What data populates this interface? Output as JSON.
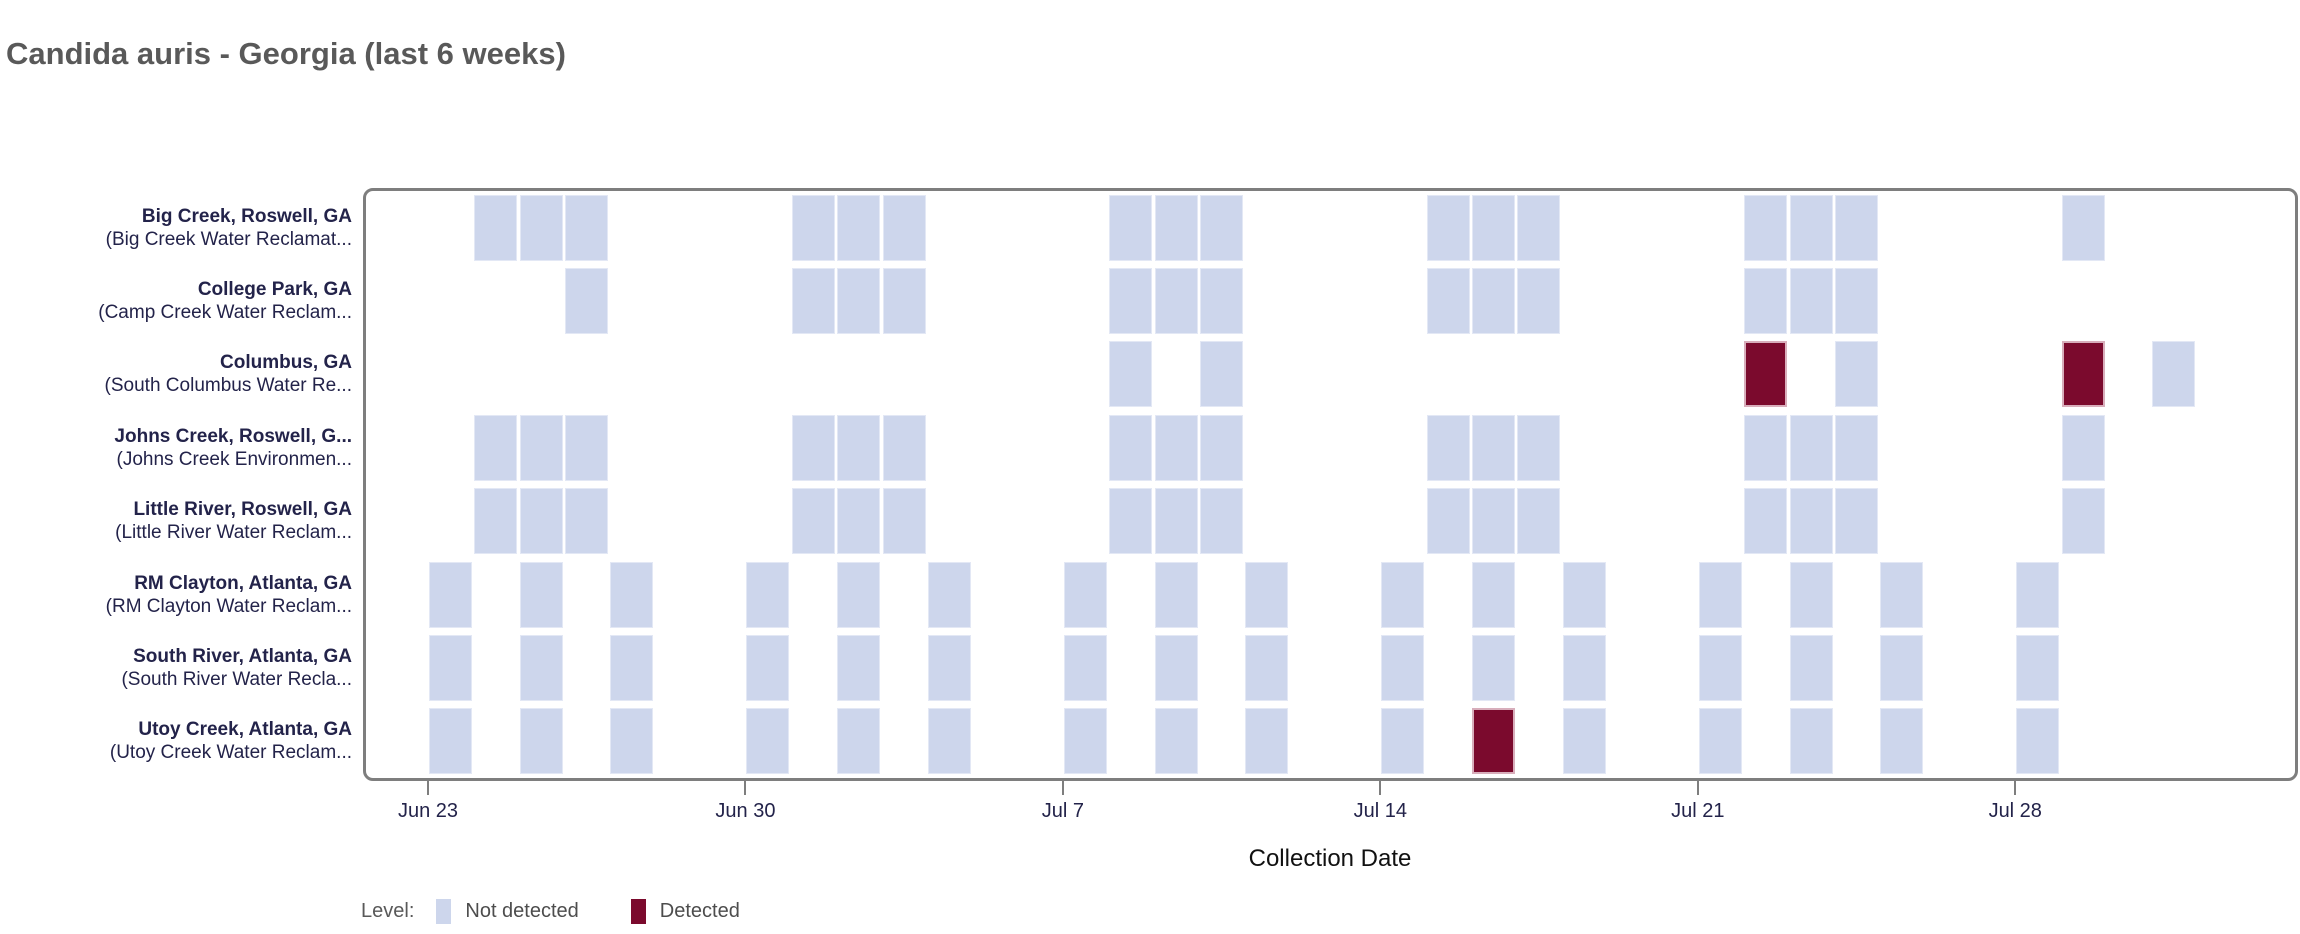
{
  "title": "Candida auris - Georgia (last 6 weeks)",
  "xlabel": "Collection Date",
  "legend": {
    "label": "Level:",
    "items": [
      {
        "label": "Not detected",
        "color": "#cdd6ec"
      },
      {
        "label": "Detected",
        "color": "#7b0a2d"
      }
    ]
  },
  "colors": {
    "not_detected": "#cdd6ec",
    "detected": "#7b0a2d",
    "detected_border": "#d8aebb",
    "plot_border": "#7e7e7e",
    "label_text": "#23234a",
    "title_text": "#595959",
    "legend_text": "#4d4d4d"
  },
  "chart_data": {
    "type": "heatmap",
    "x_axis_label": "Collection Date",
    "x_ticks": [
      {
        "label": "Jun 23",
        "day": 0
      },
      {
        "label": "Jun 30",
        "day": 7
      },
      {
        "label": "Jul 7",
        "day": 14
      },
      {
        "label": "Jul 14",
        "day": 21
      },
      {
        "label": "Jul 21",
        "day": 28
      },
      {
        "label": "Jul 28",
        "day": 35
      }
    ],
    "x_domain_days": [
      -1.43,
      41.23
    ],
    "legend_levels": [
      "Not detected",
      "Detected"
    ],
    "rows": [
      {
        "name": "Big Creek, Roswell, GA",
        "facility": "(Big Creek Water Reclamat...",
        "samples": [
          {
            "date": "Jun 24",
            "day": 1,
            "status": "not_detected"
          },
          {
            "date": "Jun 25",
            "day": 2,
            "status": "not_detected"
          },
          {
            "date": "Jun 26",
            "day": 3,
            "status": "not_detected"
          },
          {
            "date": "Jul 1",
            "day": 8,
            "status": "not_detected"
          },
          {
            "date": "Jul 2",
            "day": 9,
            "status": "not_detected"
          },
          {
            "date": "Jul 3",
            "day": 10,
            "status": "not_detected"
          },
          {
            "date": "Jul 8",
            "day": 15,
            "status": "not_detected"
          },
          {
            "date": "Jul 9",
            "day": 16,
            "status": "not_detected"
          },
          {
            "date": "Jul 10",
            "day": 17,
            "status": "not_detected"
          },
          {
            "date": "Jul 15",
            "day": 22,
            "status": "not_detected"
          },
          {
            "date": "Jul 16",
            "day": 23,
            "status": "not_detected"
          },
          {
            "date": "Jul 17",
            "day": 24,
            "status": "not_detected"
          },
          {
            "date": "Jul 22",
            "day": 29,
            "status": "not_detected"
          },
          {
            "date": "Jul 23",
            "day": 30,
            "status": "not_detected"
          },
          {
            "date": "Jul 24",
            "day": 31,
            "status": "not_detected"
          },
          {
            "date": "Jul 29",
            "day": 36,
            "status": "not_detected"
          }
        ]
      },
      {
        "name": "College Park, GA",
        "facility": "(Camp Creek Water Reclam...",
        "samples": [
          {
            "date": "Jun 26",
            "day": 3,
            "status": "not_detected"
          },
          {
            "date": "Jul 1",
            "day": 8,
            "status": "not_detected"
          },
          {
            "date": "Jul 2",
            "day": 9,
            "status": "not_detected"
          },
          {
            "date": "Jul 3",
            "day": 10,
            "status": "not_detected"
          },
          {
            "date": "Jul 8",
            "day": 15,
            "status": "not_detected"
          },
          {
            "date": "Jul 9",
            "day": 16,
            "status": "not_detected"
          },
          {
            "date": "Jul 10",
            "day": 17,
            "status": "not_detected"
          },
          {
            "date": "Jul 15",
            "day": 22,
            "status": "not_detected"
          },
          {
            "date": "Jul 16",
            "day": 23,
            "status": "not_detected"
          },
          {
            "date": "Jul 17",
            "day": 24,
            "status": "not_detected"
          },
          {
            "date": "Jul 22",
            "day": 29,
            "status": "not_detected"
          },
          {
            "date": "Jul 23",
            "day": 30,
            "status": "not_detected"
          },
          {
            "date": "Jul 24",
            "day": 31,
            "status": "not_detected"
          }
        ]
      },
      {
        "name": "Columbus, GA",
        "facility": "(South Columbus Water Re...",
        "samples": [
          {
            "date": "Jul 8",
            "day": 15,
            "status": "not_detected"
          },
          {
            "date": "Jul 10",
            "day": 17,
            "status": "not_detected"
          },
          {
            "date": "Jul 22",
            "day": 29,
            "status": "detected"
          },
          {
            "date": "Jul 24",
            "day": 31,
            "status": "not_detected"
          },
          {
            "date": "Jul 29",
            "day": 36,
            "status": "detected"
          },
          {
            "date": "Jul 31",
            "day": 38,
            "status": "not_detected"
          }
        ]
      },
      {
        "name": "Johns Creek, Roswell, G...",
        "facility": "(Johns Creek Environmen...",
        "samples": [
          {
            "date": "Jun 24",
            "day": 1,
            "status": "not_detected"
          },
          {
            "date": "Jun 25",
            "day": 2,
            "status": "not_detected"
          },
          {
            "date": "Jun 26",
            "day": 3,
            "status": "not_detected"
          },
          {
            "date": "Jul 1",
            "day": 8,
            "status": "not_detected"
          },
          {
            "date": "Jul 2",
            "day": 9,
            "status": "not_detected"
          },
          {
            "date": "Jul 3",
            "day": 10,
            "status": "not_detected"
          },
          {
            "date": "Jul 8",
            "day": 15,
            "status": "not_detected"
          },
          {
            "date": "Jul 9",
            "day": 16,
            "status": "not_detected"
          },
          {
            "date": "Jul 10",
            "day": 17,
            "status": "not_detected"
          },
          {
            "date": "Jul 15",
            "day": 22,
            "status": "not_detected"
          },
          {
            "date": "Jul 16",
            "day": 23,
            "status": "not_detected"
          },
          {
            "date": "Jul 17",
            "day": 24,
            "status": "not_detected"
          },
          {
            "date": "Jul 22",
            "day": 29,
            "status": "not_detected"
          },
          {
            "date": "Jul 23",
            "day": 30,
            "status": "not_detected"
          },
          {
            "date": "Jul 24",
            "day": 31,
            "status": "not_detected"
          },
          {
            "date": "Jul 29",
            "day": 36,
            "status": "not_detected"
          }
        ]
      },
      {
        "name": "Little River, Roswell, GA",
        "facility": "(Little River Water Reclam...",
        "samples": [
          {
            "date": "Jun 24",
            "day": 1,
            "status": "not_detected"
          },
          {
            "date": "Jun 25",
            "day": 2,
            "status": "not_detected"
          },
          {
            "date": "Jun 26",
            "day": 3,
            "status": "not_detected"
          },
          {
            "date": "Jul 1",
            "day": 8,
            "status": "not_detected"
          },
          {
            "date": "Jul 2",
            "day": 9,
            "status": "not_detected"
          },
          {
            "date": "Jul 3",
            "day": 10,
            "status": "not_detected"
          },
          {
            "date": "Jul 8",
            "day": 15,
            "status": "not_detected"
          },
          {
            "date": "Jul 9",
            "day": 16,
            "status": "not_detected"
          },
          {
            "date": "Jul 10",
            "day": 17,
            "status": "not_detected"
          },
          {
            "date": "Jul 15",
            "day": 22,
            "status": "not_detected"
          },
          {
            "date": "Jul 16",
            "day": 23,
            "status": "not_detected"
          },
          {
            "date": "Jul 17",
            "day": 24,
            "status": "not_detected"
          },
          {
            "date": "Jul 22",
            "day": 29,
            "status": "not_detected"
          },
          {
            "date": "Jul 23",
            "day": 30,
            "status": "not_detected"
          },
          {
            "date": "Jul 24",
            "day": 31,
            "status": "not_detected"
          },
          {
            "date": "Jul 29",
            "day": 36,
            "status": "not_detected"
          }
        ]
      },
      {
        "name": "RM Clayton, Atlanta, GA",
        "facility": "(RM Clayton Water Reclam...",
        "samples": [
          {
            "date": "Jun 23",
            "day": 0,
            "status": "not_detected"
          },
          {
            "date": "Jun 25",
            "day": 2,
            "status": "not_detected"
          },
          {
            "date": "Jun 27",
            "day": 4,
            "status": "not_detected"
          },
          {
            "date": "Jun 30",
            "day": 7,
            "status": "not_detected"
          },
          {
            "date": "Jul 2",
            "day": 9,
            "status": "not_detected"
          },
          {
            "date": "Jul 4",
            "day": 11,
            "status": "not_detected"
          },
          {
            "date": "Jul 7",
            "day": 14,
            "status": "not_detected"
          },
          {
            "date": "Jul 9",
            "day": 16,
            "status": "not_detected"
          },
          {
            "date": "Jul 11",
            "day": 18,
            "status": "not_detected"
          },
          {
            "date": "Jul 14",
            "day": 21,
            "status": "not_detected"
          },
          {
            "date": "Jul 16",
            "day": 23,
            "status": "not_detected"
          },
          {
            "date": "Jul 18",
            "day": 25,
            "status": "not_detected"
          },
          {
            "date": "Jul 21",
            "day": 28,
            "status": "not_detected"
          },
          {
            "date": "Jul 23",
            "day": 30,
            "status": "not_detected"
          },
          {
            "date": "Jul 25",
            "day": 32,
            "status": "not_detected"
          },
          {
            "date": "Jul 28",
            "day": 35,
            "status": "not_detected"
          }
        ]
      },
      {
        "name": "South River, Atlanta, GA",
        "facility": "(South River Water Recla...",
        "samples": [
          {
            "date": "Jun 23",
            "day": 0,
            "status": "not_detected"
          },
          {
            "date": "Jun 25",
            "day": 2,
            "status": "not_detected"
          },
          {
            "date": "Jun 27",
            "day": 4,
            "status": "not_detected"
          },
          {
            "date": "Jun 30",
            "day": 7,
            "status": "not_detected"
          },
          {
            "date": "Jul 2",
            "day": 9,
            "status": "not_detected"
          },
          {
            "date": "Jul 4",
            "day": 11,
            "status": "not_detected"
          },
          {
            "date": "Jul 7",
            "day": 14,
            "status": "not_detected"
          },
          {
            "date": "Jul 9",
            "day": 16,
            "status": "not_detected"
          },
          {
            "date": "Jul 11",
            "day": 18,
            "status": "not_detected"
          },
          {
            "date": "Jul 14",
            "day": 21,
            "status": "not_detected"
          },
          {
            "date": "Jul 16",
            "day": 23,
            "status": "not_detected"
          },
          {
            "date": "Jul 18",
            "day": 25,
            "status": "not_detected"
          },
          {
            "date": "Jul 21",
            "day": 28,
            "status": "not_detected"
          },
          {
            "date": "Jul 23",
            "day": 30,
            "status": "not_detected"
          },
          {
            "date": "Jul 25",
            "day": 32,
            "status": "not_detected"
          },
          {
            "date": "Jul 28",
            "day": 35,
            "status": "not_detected"
          }
        ]
      },
      {
        "name": "Utoy Creek, Atlanta, GA",
        "facility": "(Utoy Creek Water Reclam...",
        "samples": [
          {
            "date": "Jun 23",
            "day": 0,
            "status": "not_detected"
          },
          {
            "date": "Jun 25",
            "day": 2,
            "status": "not_detected"
          },
          {
            "date": "Jun 27",
            "day": 4,
            "status": "not_detected"
          },
          {
            "date": "Jun 30",
            "day": 7,
            "status": "not_detected"
          },
          {
            "date": "Jul 2",
            "day": 9,
            "status": "not_detected"
          },
          {
            "date": "Jul 4",
            "day": 11,
            "status": "not_detected"
          },
          {
            "date": "Jul 7",
            "day": 14,
            "status": "not_detected"
          },
          {
            "date": "Jul 9",
            "day": 16,
            "status": "not_detected"
          },
          {
            "date": "Jul 11",
            "day": 18,
            "status": "not_detected"
          },
          {
            "date": "Jul 14",
            "day": 21,
            "status": "not_detected"
          },
          {
            "date": "Jul 16",
            "day": 23,
            "status": "detected"
          },
          {
            "date": "Jul 18",
            "day": 25,
            "status": "not_detected"
          },
          {
            "date": "Jul 21",
            "day": 28,
            "status": "not_detected"
          },
          {
            "date": "Jul 23",
            "day": 30,
            "status": "not_detected"
          },
          {
            "date": "Jul 25",
            "day": 32,
            "status": "not_detected"
          },
          {
            "date": "Jul 28",
            "day": 35,
            "status": "not_detected"
          }
        ]
      }
    ]
  }
}
